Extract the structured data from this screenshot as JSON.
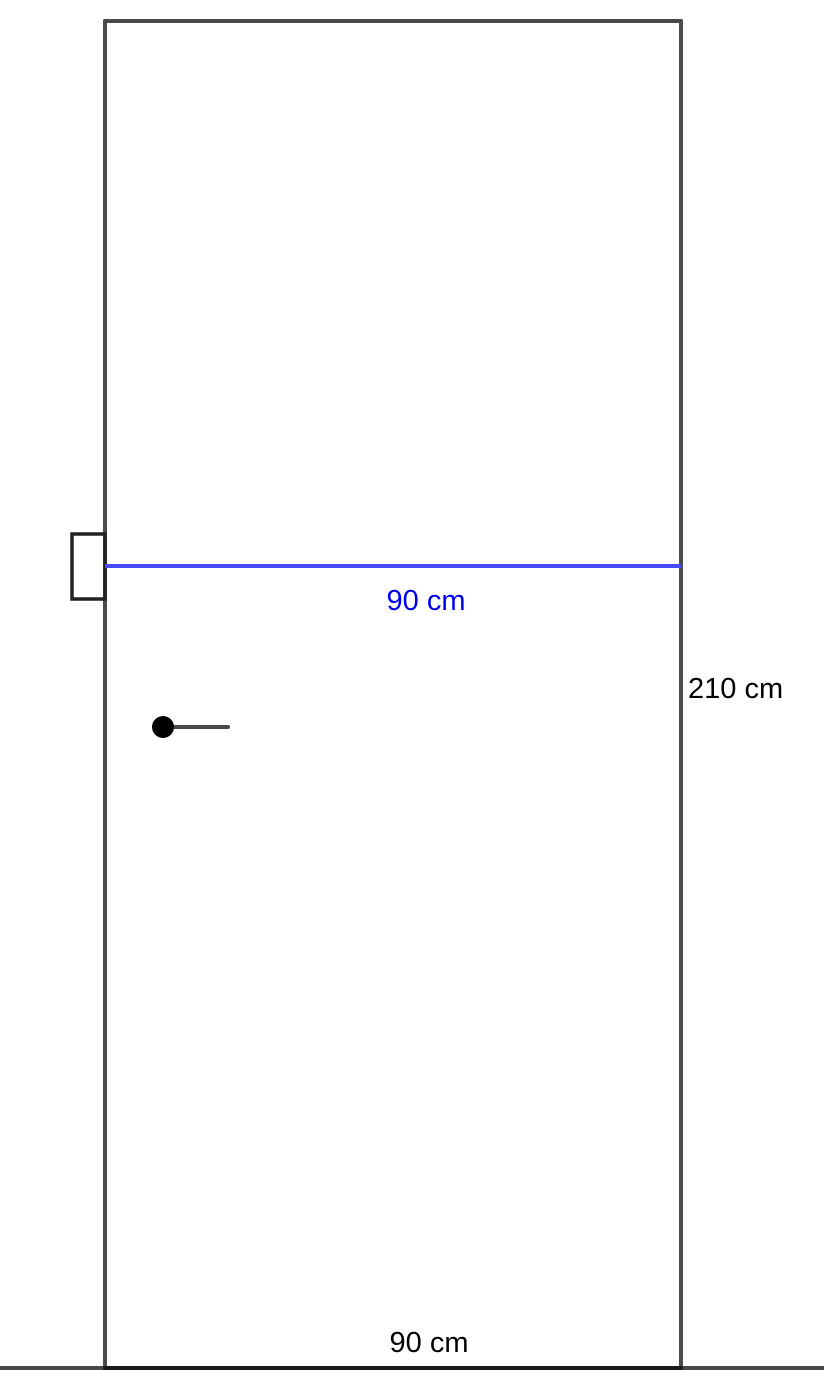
{
  "labels": {
    "width_top": "90 cm",
    "height": "210 cm",
    "width_bottom": "90 cm"
  },
  "colors": {
    "outline": "#4a4a4a",
    "measure_line": "#4a4aff",
    "measure_text": "#0000ee",
    "text": "#000000",
    "handle_knob": "#000000"
  }
}
